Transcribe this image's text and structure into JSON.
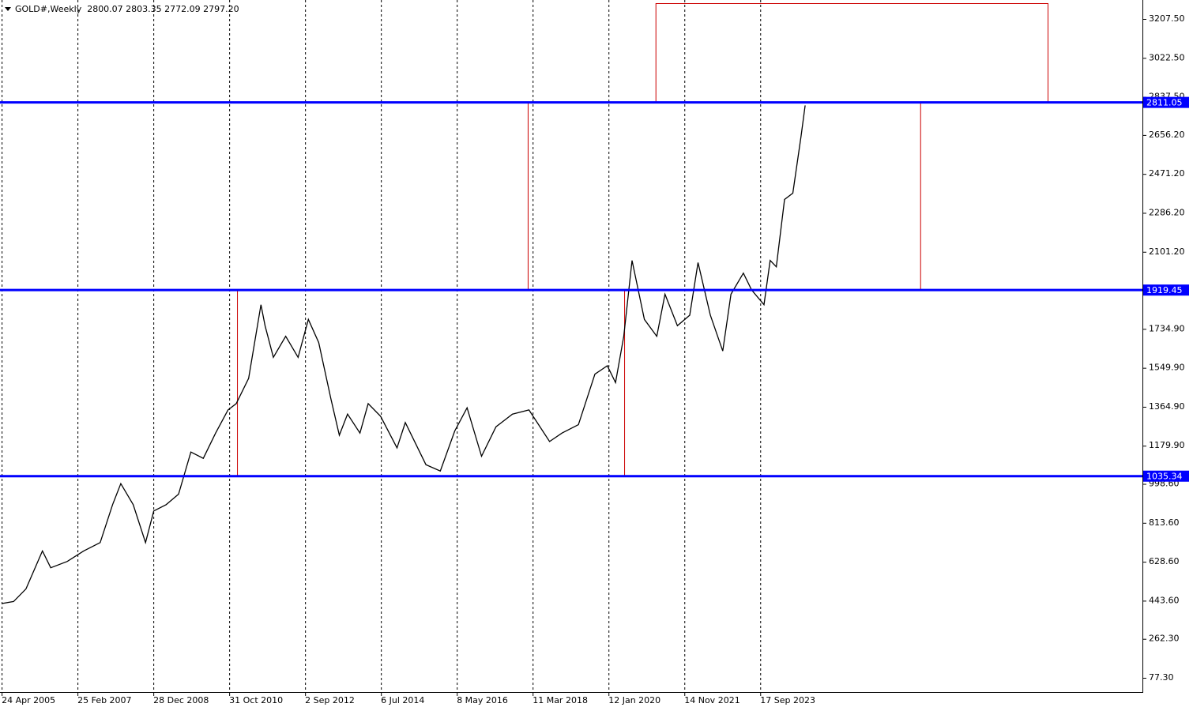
{
  "chart_data": {
    "type": "line",
    "title": "GOLD#,Weekly  2800.07 2803.35 2772.09 2797.20",
    "color": "#000000",
    "x": [
      2005.31,
      2005.6,
      2005.9,
      2006.3,
      2006.5,
      2006.9,
      2007.3,
      2007.7,
      2008.0,
      2008.2,
      2008.5,
      2008.8,
      2009.0,
      2009.3,
      2009.6,
      2009.9,
      2010.2,
      2010.5,
      2010.8,
      2011.0,
      2011.3,
      2011.6,
      2011.7,
      2011.9,
      2012.2,
      2012.5,
      2012.75,
      2013.0,
      2013.3,
      2013.5,
      2013.7,
      2014.0,
      2014.2,
      2014.5,
      2014.9,
      2015.1,
      2015.6,
      2015.95,
      2016.3,
      2016.6,
      2016.95,
      2017.3,
      2017.7,
      2018.1,
      2018.6,
      2018.9,
      2019.3,
      2019.7,
      2020.0,
      2020.2,
      2020.4,
      2020.6,
      2020.9,
      2021.2,
      2021.4,
      2021.7,
      2022.0,
      2022.2,
      2022.5,
      2022.8,
      2023.0,
      2023.3,
      2023.5,
      2023.8,
      2023.95,
      2024.1,
      2024.3,
      2024.5,
      2024.7,
      2024.8
    ],
    "values": [
      430,
      440,
      500,
      680,
      600,
      630,
      680,
      720,
      900,
      1000,
      900,
      720,
      870,
      900,
      950,
      1150,
      1120,
      1240,
      1350,
      1380,
      1500,
      1850,
      1750,
      1600,
      1700,
      1600,
      1780,
      1670,
      1400,
      1230,
      1330,
      1240,
      1380,
      1320,
      1170,
      1290,
      1090,
      1060,
      1250,
      1360,
      1130,
      1270,
      1330,
      1350,
      1200,
      1240,
      1280,
      1520,
      1560,
      1480,
      1700,
      2060,
      1780,
      1700,
      1900,
      1750,
      1800,
      2050,
      1800,
      1630,
      1900,
      2000,
      1920,
      1850,
      2060,
      2030,
      2350,
      2380,
      2650,
      2797
    ],
    "levels": [
      2811.05,
      1919.45,
      1035.34
    ],
    "level_color": "#0000ff",
    "rectangles": [
      {
        "x0": 2011.02,
        "x1": 2020.41,
        "y0": 1035.34,
        "y1": 1919.45
      },
      {
        "x0": 2018.07,
        "x1": 2027.59,
        "y0": 1919.45,
        "y1": 2811.05
      },
      {
        "x0": 2021.17,
        "x1": 2030.68,
        "y0": 2811.05,
        "y1": 3282.6
      }
    ],
    "rect_color": "#cc0000",
    "grid": true,
    "xlim": [
      2005.27,
      2032.98
    ],
    "ylim": [
      9.7,
      3297.6
    ],
    "xticks": [
      {
        "value": 2005.31,
        "label": "24 Apr 2005"
      },
      {
        "value": 2007.15,
        "label": "25 Feb 2007"
      },
      {
        "value": 2008.99,
        "label": "28 Dec 2008"
      },
      {
        "value": 2010.83,
        "label": "31 Oct 2010"
      },
      {
        "value": 2012.67,
        "label": "2 Sep 2012"
      },
      {
        "value": 2014.51,
        "label": "6 Jul 2014"
      },
      {
        "value": 2016.35,
        "label": "8 May 2016"
      },
      {
        "value": 2018.19,
        "label": "11 Mar 2018"
      },
      {
        "value": 2020.03,
        "label": "12 Jan 2020"
      },
      {
        "value": 2021.87,
        "label": "14 Nov 2021"
      },
      {
        "value": 2023.71,
        "label": "17 Sep 2023"
      }
    ],
    "yticks": [
      {
        "value": 77.3,
        "label": "77.30"
      },
      {
        "value": 262.3,
        "label": "262.30"
      },
      {
        "value": 443.6,
        "label": "443.60"
      },
      {
        "value": 628.6,
        "label": "628.60"
      },
      {
        "value": 813.6,
        "label": "813.60"
      },
      {
        "value": 998.6,
        "label": "998.60"
      },
      {
        "value": 1179.9,
        "label": "1179.90"
      },
      {
        "value": 1364.9,
        "label": "1364.90"
      },
      {
        "value": 1549.9,
        "label": "1549.90"
      },
      {
        "value": 1734.9,
        "label": "1734.90"
      },
      {
        "value": 2101.2,
        "label": "2101.20"
      },
      {
        "value": 2286.2,
        "label": "2286.20"
      },
      {
        "value": 2471.2,
        "label": "2471.20"
      },
      {
        "value": 2656.2,
        "label": "2656.20"
      },
      {
        "value": 2837.5,
        "label": "2837.50"
      },
      {
        "value": 3022.5,
        "label": "3022.50"
      },
      {
        "value": 3207.5,
        "label": "3207.50"
      }
    ]
  }
}
